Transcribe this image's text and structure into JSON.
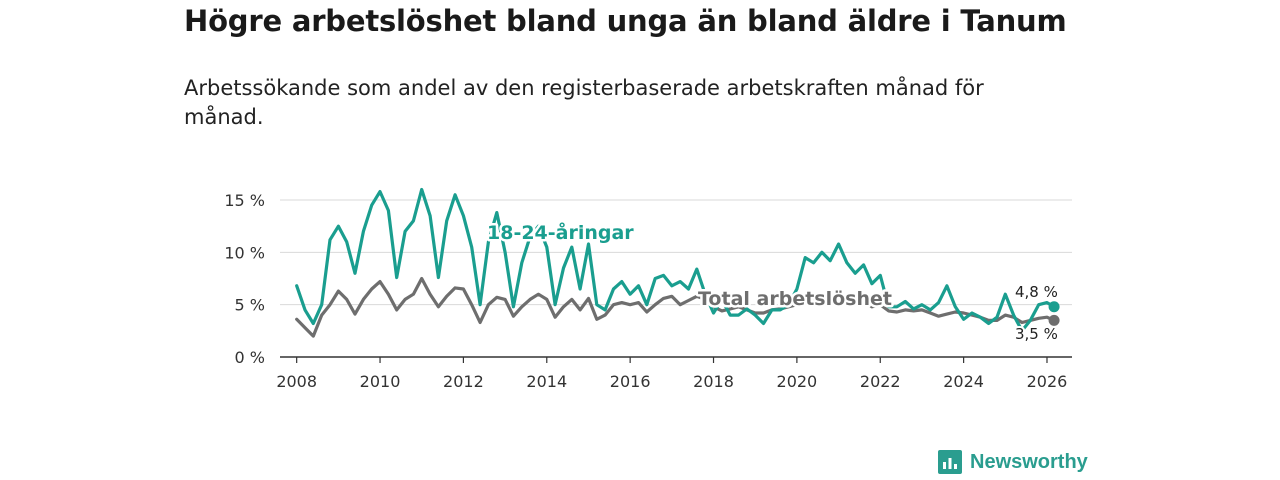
{
  "header": {
    "title": "Högre arbetslöshet bland unga än bland äldre i Tanum",
    "subtitle": "Arbetssökande som andel av den registerbaserade arbetskraften månad för månad."
  },
  "brand": {
    "name": "Newsworthy",
    "icon": "bar-chart-icon"
  },
  "chart_data": {
    "type": "line",
    "title": "Högre arbetslöshet bland unga än bland äldre i Tanum",
    "subtitle": "Arbetssökande som andel av den registerbaserade arbetskraften månad för månad.",
    "xlabel": "",
    "ylabel": "",
    "xlim": [
      2007.6,
      2026.6
    ],
    "ylim": [
      0,
      15
    ],
    "x_ticks": [
      2008,
      2010,
      2012,
      2014,
      2016,
      2018,
      2020,
      2022,
      2024,
      2026
    ],
    "x_tick_labels": [
      "2008",
      "2010",
      "2012",
      "2014",
      "2016",
      "2018",
      "2020",
      "2022",
      "2024",
      "2026"
    ],
    "y_ticks": [
      0,
      5,
      10,
      15
    ],
    "y_tick_labels": [
      "0 %",
      "5 %",
      "10 %",
      "15 %"
    ],
    "grid": true,
    "colors": {
      "youth": "#1a9e8f",
      "total": "#6e6e6e",
      "grid": "#d9d9d9",
      "axis": "#333333"
    },
    "series": [
      {
        "name": "18-24-åringar",
        "label": "18-24-åringar",
        "color": "#1a9e8f",
        "end_label": "4,8 %",
        "x": [
          2008.0,
          2008.2,
          2008.4,
          2008.6,
          2008.8,
          2009.0,
          2009.2,
          2009.4,
          2009.6,
          2009.8,
          2010.0,
          2010.2,
          2010.4,
          2010.6,
          2010.8,
          2011.0,
          2011.2,
          2011.4,
          2011.6,
          2011.8,
          2012.0,
          2012.2,
          2012.4,
          2012.6,
          2012.8,
          2013.0,
          2013.2,
          2013.4,
          2013.6,
          2013.8,
          2014.0,
          2014.2,
          2014.4,
          2014.6,
          2014.8,
          2015.0,
          2015.2,
          2015.4,
          2015.6,
          2015.8,
          2016.0,
          2016.2,
          2016.4,
          2016.6,
          2016.8,
          2017.0,
          2017.2,
          2017.4,
          2017.6,
          2017.8,
          2018.0,
          2018.2,
          2018.4,
          2018.6,
          2018.8,
          2019.0,
          2019.2,
          2019.4,
          2019.6,
          2019.8,
          2020.0,
          2020.2,
          2020.4,
          2020.6,
          2020.8,
          2021.0,
          2021.2,
          2021.4,
          2021.6,
          2021.8,
          2022.0,
          2022.2,
          2022.4,
          2022.6,
          2022.8,
          2023.0,
          2023.2,
          2023.4,
          2023.6,
          2023.8,
          2024.0,
          2024.2,
          2024.4,
          2024.6,
          2024.8,
          2025.0,
          2025.2,
          2025.4,
          2025.6,
          2025.8,
          2026.0,
          2026.17
        ],
        "values": [
          6.8,
          4.5,
          3.2,
          5.0,
          11.2,
          12.5,
          11.0,
          8.0,
          12.0,
          14.5,
          15.8,
          14.0,
          7.6,
          12.0,
          13.0,
          16.0,
          13.5,
          7.6,
          13.0,
          15.5,
          13.5,
          10.5,
          5.0,
          11.0,
          13.8,
          10.0,
          4.8,
          9.0,
          11.5,
          12.5,
          10.5,
          5.0,
          8.5,
          10.5,
          6.5,
          10.8,
          5.0,
          4.5,
          6.5,
          7.2,
          6.0,
          6.8,
          5.0,
          7.5,
          7.8,
          6.8,
          7.2,
          6.5,
          8.4,
          6.0,
          4.2,
          5.5,
          4.0,
          4.0,
          4.6,
          4.0,
          3.2,
          4.5,
          4.5,
          5.0,
          6.5,
          9.5,
          9.0,
          10.0,
          9.2,
          10.8,
          9.0,
          8.0,
          8.8,
          7.0,
          7.8,
          4.8,
          4.8,
          5.3,
          4.6,
          5.0,
          4.5,
          5.2,
          6.8,
          4.8,
          3.6,
          4.2,
          3.8,
          3.2,
          3.8,
          6.0,
          4.0,
          2.5,
          3.5,
          5.0,
          5.2,
          4.8
        ]
      },
      {
        "name": "Total arbetslöshet",
        "label": "Total arbetslöshet",
        "color": "#6e6e6e",
        "end_label": "3,5 %",
        "x": [
          2008.0,
          2008.2,
          2008.4,
          2008.6,
          2008.8,
          2009.0,
          2009.2,
          2009.4,
          2009.6,
          2009.8,
          2010.0,
          2010.2,
          2010.4,
          2010.6,
          2010.8,
          2011.0,
          2011.2,
          2011.4,
          2011.6,
          2011.8,
          2012.0,
          2012.2,
          2012.4,
          2012.6,
          2012.8,
          2013.0,
          2013.2,
          2013.4,
          2013.6,
          2013.8,
          2014.0,
          2014.2,
          2014.4,
          2014.6,
          2014.8,
          2015.0,
          2015.2,
          2015.4,
          2015.6,
          2015.8,
          2016.0,
          2016.2,
          2016.4,
          2016.6,
          2016.8,
          2017.0,
          2017.2,
          2017.4,
          2017.6,
          2017.8,
          2018.0,
          2018.2,
          2018.4,
          2018.6,
          2018.8,
          2019.0,
          2019.2,
          2019.4,
          2019.6,
          2019.8,
          2020.0,
          2020.2,
          2020.4,
          2020.6,
          2020.8,
          2021.0,
          2021.2,
          2021.4,
          2021.6,
          2021.8,
          2022.0,
          2022.2,
          2022.4,
          2022.6,
          2022.8,
          2023.0,
          2023.2,
          2023.4,
          2023.6,
          2023.8,
          2024.0,
          2024.2,
          2024.4,
          2024.6,
          2024.8,
          2025.0,
          2025.2,
          2025.4,
          2025.6,
          2025.8,
          2026.0,
          2026.17
        ],
        "values": [
          3.6,
          2.8,
          2.0,
          4.0,
          5.0,
          6.3,
          5.5,
          4.1,
          5.5,
          6.5,
          7.2,
          6.0,
          4.5,
          5.5,
          6.0,
          7.5,
          6.0,
          4.8,
          5.8,
          6.6,
          6.5,
          5.0,
          3.3,
          5.0,
          5.7,
          5.5,
          3.9,
          4.8,
          5.5,
          6.0,
          5.5,
          3.8,
          4.8,
          5.5,
          4.5,
          5.6,
          3.6,
          4.0,
          5.0,
          5.2,
          5.0,
          5.2,
          4.3,
          5.0,
          5.6,
          5.8,
          5.0,
          5.4,
          5.8,
          5.5,
          4.8,
          4.4,
          4.6,
          4.8,
          4.5,
          4.2,
          4.2,
          4.5,
          4.6,
          4.8,
          5.0,
          5.6,
          5.5,
          5.8,
          5.6,
          6.0,
          5.5,
          5.0,
          5.4,
          4.8,
          5.0,
          4.4,
          4.3,
          4.5,
          4.4,
          4.5,
          4.2,
          3.9,
          4.1,
          4.3,
          4.2,
          4.0,
          3.8,
          3.5,
          3.5,
          4.0,
          3.8,
          3.3,
          3.5,
          3.7,
          3.8,
          3.5
        ]
      }
    ],
    "annotations": [
      {
        "text": "18-24-åringar",
        "series": "18-24-åringar"
      },
      {
        "text": "Total arbetslöshet",
        "series": "Total arbetslöshet"
      }
    ]
  }
}
